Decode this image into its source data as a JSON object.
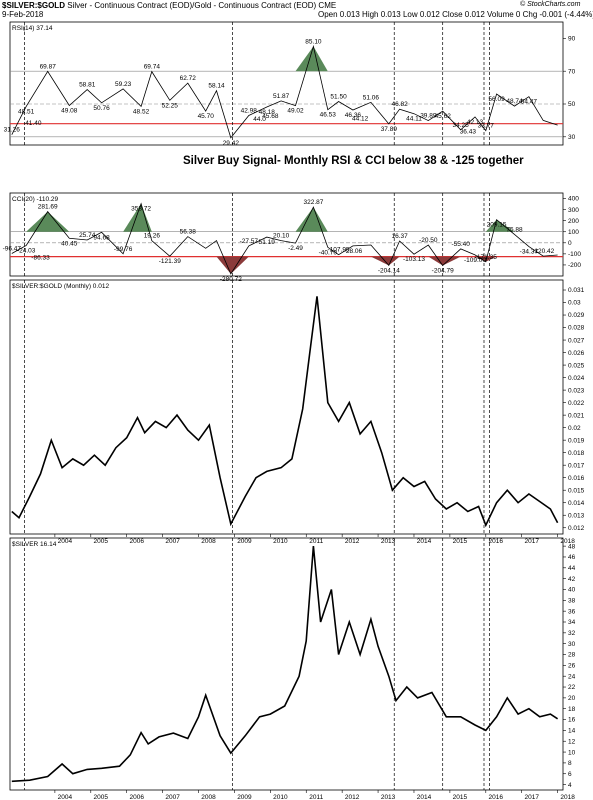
{
  "header": {
    "symbol": "$SILVER:$GOLD",
    "description": "Silver - Continuous Contract (EOD)/Gold - Continuous Contract (EOD) CME",
    "date": "9-Feb-2018",
    "quote": "Open 0.013  High 0.013  Low 0.012  Close 0.012  Volume 0  Chg -0.001 (-4.44%)",
    "brand": "© StockCharts.com"
  },
  "annotation": "Silver Buy Signal- Monthly RSI & CCI below 38 & -125 together",
  "colors": {
    "line": "#000000",
    "red": "#e03030",
    "green": "#5a8a5a",
    "maroon": "#8b3a3a",
    "grid": "#d0d0d0"
  },
  "chart_data": [
    {
      "type": "line",
      "name": "rsi",
      "title": "RSI(14) 37.14",
      "ylim": [
        25,
        100
      ],
      "yticks": [
        30,
        50,
        70,
        90
      ],
      "reference_lines": [
        30,
        38,
        50,
        70
      ],
      "x": [
        2002.8,
        2003.2,
        2003.8,
        2004.4,
        2004.9,
        2005.3,
        2005.9,
        2006.4,
        2006.7,
        2007.2,
        2007.7,
        2008.2,
        2008.5,
        2008.9,
        2009.4,
        2009.9,
        2010.3,
        2010.7,
        2011.2,
        2011.6,
        2011.9,
        2012.3,
        2012.8,
        2013.3,
        2013.6,
        2014.0,
        2014.4,
        2014.8,
        2015.3,
        2015.7,
        2016.0,
        2016.3,
        2016.8,
        2017.2,
        2017.6,
        2018.0
      ],
      "y": [
        31.26,
        48.51,
        69.87,
        49.08,
        58.81,
        50.76,
        59.23,
        48.52,
        69.74,
        52.25,
        62.72,
        45.7,
        58.14,
        29.42,
        42.98,
        48.18,
        51.87,
        49.02,
        85.1,
        46.53,
        51.5,
        46.36,
        51.06,
        37.89,
        46.82,
        44.11,
        39.89,
        45.62,
        34.25,
        42.13,
        33.77,
        56.09,
        48.74,
        54.47,
        40.0,
        37.14
      ],
      "labels": [
        "31.26",
        "48.51",
        "69.87",
        "49.08",
        "58.81",
        "50.76",
        "59.23",
        "48.52",
        "69.74",
        "52.25",
        "62.72",
        "45.70",
        "58.14",
        "29.42",
        "42.98",
        "48.18",
        "51.87",
        "49.02",
        "85.10",
        "46.53",
        "51.50",
        "46.36",
        "51.06",
        "37.89",
        "46.82",
        "44.11",
        "39.89",
        "45.62",
        "34.25",
        "42.13",
        "33.77",
        "56.09",
        "48.74",
        "54.47",
        "",
        ""
      ],
      "extra_labels": [
        "41.40",
        "44.0",
        "45.68",
        "44.12",
        "36.43"
      ]
    },
    {
      "type": "line",
      "name": "cci",
      "title": "CCI(20) -110.29",
      "ylim": [
        -300,
        450
      ],
      "yticks": [
        -200,
        -100,
        0,
        100,
        200,
        300,
        400
      ],
      "reference_lines": [
        -125,
        0,
        100
      ],
      "x": [
        2002.8,
        2003.2,
        2003.8,
        2004.4,
        2004.9,
        2005.3,
        2005.9,
        2006.4,
        2006.7,
        2007.2,
        2007.7,
        2008.2,
        2008.5,
        2008.9,
        2009.4,
        2009.9,
        2010.3,
        2010.7,
        2011.2,
        2011.6,
        2011.9,
        2012.3,
        2012.8,
        2013.3,
        2013.6,
        2014.0,
        2014.4,
        2014.8,
        2015.3,
        2015.7,
        2016.0,
        2016.3,
        2016.8,
        2017.2,
        2017.6,
        2018.0
      ],
      "y": [
        -96.47,
        -24.03,
        281.69,
        40.45,
        25.74,
        94.68,
        -99.76,
        353.72,
        19.26,
        -121.39,
        56.38,
        -50,
        20,
        -280.72,
        -27.57,
        51.19,
        20.1,
        -2.49,
        322.87,
        -40.7,
        -107.95,
        -28.06,
        -20,
        -204.14,
        16.37,
        -103.13,
        -20.5,
        -204.79,
        -55.4,
        -109.0,
        -171.35,
        209.15,
        75.88,
        -34.37,
        -120.42,
        -110.29
      ],
      "labels": [
        "-96.47",
        "-24.03",
        "281.69",
        "40.45",
        "25.74",
        "94.68",
        "-99.76",
        "353.72",
        "19.26",
        "-121.39",
        "56.38",
        "",
        "",
        "-280.72",
        "-27.57",
        "51.19",
        "20.10",
        "-2.49",
        "322.87",
        "-40.70",
        "-107.95",
        "-28.06",
        "",
        "-204.14",
        "16.37",
        "-103.13",
        "-20.50",
        "-204.79",
        "-55.40",
        "-109.00",
        "-171.35",
        "209.15",
        "75.88",
        "-34.37",
        "-120.42",
        ""
      ],
      "extra_labels": [
        "-86.33"
      ]
    },
    {
      "type": "line",
      "name": "ratio",
      "title": "$SILVER:$GOLD (Monthly) 0.012",
      "ylim": [
        0.0115,
        0.0318
      ],
      "yticks": [
        0.012,
        0.013,
        0.014,
        0.015,
        0.016,
        0.017,
        0.018,
        0.019,
        0.02,
        0.021,
        0.022,
        0.023,
        0.024,
        0.025,
        0.026,
        0.027,
        0.028,
        0.029,
        0.03,
        0.031
      ],
      "x": [
        2002.8,
        2003.0,
        2003.3,
        2003.6,
        2003.9,
        2004.2,
        2004.5,
        2004.8,
        2005.1,
        2005.4,
        2005.7,
        2006.0,
        2006.3,
        2006.5,
        2006.8,
        2007.1,
        2007.4,
        2007.7,
        2008.0,
        2008.3,
        2008.6,
        2008.9,
        2009.3,
        2009.6,
        2009.9,
        2010.3,
        2010.6,
        2010.9,
        2011.1,
        2011.3,
        2011.6,
        2011.9,
        2012.2,
        2012.5,
        2012.8,
        2013.1,
        2013.4,
        2013.7,
        2014.0,
        2014.3,
        2014.6,
        2014.9,
        2015.2,
        2015.5,
        2015.8,
        2016.0,
        2016.3,
        2016.6,
        2016.9,
        2017.2,
        2017.5,
        2017.8,
        2018.0
      ],
      "y": [
        0.0133,
        0.0128,
        0.0145,
        0.0163,
        0.019,
        0.0168,
        0.0175,
        0.017,
        0.0178,
        0.017,
        0.0184,
        0.0192,
        0.0208,
        0.0196,
        0.0205,
        0.02,
        0.021,
        0.0198,
        0.019,
        0.0202,
        0.016,
        0.0123,
        0.0145,
        0.016,
        0.0165,
        0.0168,
        0.0175,
        0.0215,
        0.026,
        0.0305,
        0.022,
        0.0205,
        0.022,
        0.0195,
        0.0205,
        0.018,
        0.015,
        0.016,
        0.0153,
        0.0157,
        0.0143,
        0.0135,
        0.014,
        0.0133,
        0.0137,
        0.0122,
        0.014,
        0.015,
        0.014,
        0.0147,
        0.0141,
        0.0135,
        0.0124
      ]
    },
    {
      "type": "line",
      "name": "silver",
      "title": "$SILVER 16.14",
      "ylim": [
        3,
        49.5
      ],
      "yticks": [
        4,
        6,
        8,
        10,
        12,
        14,
        16,
        18,
        20,
        22,
        24,
        26,
        28,
        30,
        32,
        34,
        36,
        38,
        40,
        42,
        44,
        46,
        48
      ],
      "x": [
        2002.8,
        2003.3,
        2003.8,
        2004.2,
        2004.5,
        2004.9,
        2005.3,
        2005.8,
        2006.1,
        2006.4,
        2006.6,
        2006.9,
        2007.3,
        2007.7,
        2008.0,
        2008.2,
        2008.6,
        2008.9,
        2009.3,
        2009.7,
        2010.0,
        2010.4,
        2010.8,
        2011.0,
        2011.2,
        2011.4,
        2011.7,
        2011.9,
        2012.2,
        2012.5,
        2012.8,
        2013.0,
        2013.3,
        2013.5,
        2013.8,
        2014.1,
        2014.5,
        2014.9,
        2015.3,
        2015.7,
        2016.0,
        2016.3,
        2016.6,
        2016.9,
        2017.2,
        2017.5,
        2017.8,
        2018.0
      ],
      "y": [
        4.6,
        4.8,
        5.5,
        7.8,
        6.0,
        6.8,
        7.0,
        7.4,
        9.5,
        13.6,
        11.5,
        12.8,
        13.5,
        12.5,
        16.5,
        20.5,
        13.0,
        9.8,
        13.0,
        16.5,
        17.0,
        18.5,
        24.0,
        30.5,
        48.0,
        34.0,
        40.0,
        28.0,
        34.0,
        28.0,
        34.5,
        29.5,
        24.0,
        19.5,
        22.0,
        20.0,
        21.0,
        16.5,
        16.5,
        15.0,
        14.0,
        16.5,
        20.0,
        17.0,
        18.0,
        16.5,
        17.0,
        16.14
      ]
    }
  ],
  "x_ticks": [
    "2004",
    "2005",
    "2006",
    "2007",
    "2008",
    "2009",
    "2010",
    "2011",
    "2012",
    "2013",
    "2014",
    "2015",
    "2016",
    "2017",
    "2018"
  ],
  "signal_years": [
    2003.15,
    2008.95,
    2013.45,
    2014.8,
    2015.95,
    2016.1
  ]
}
